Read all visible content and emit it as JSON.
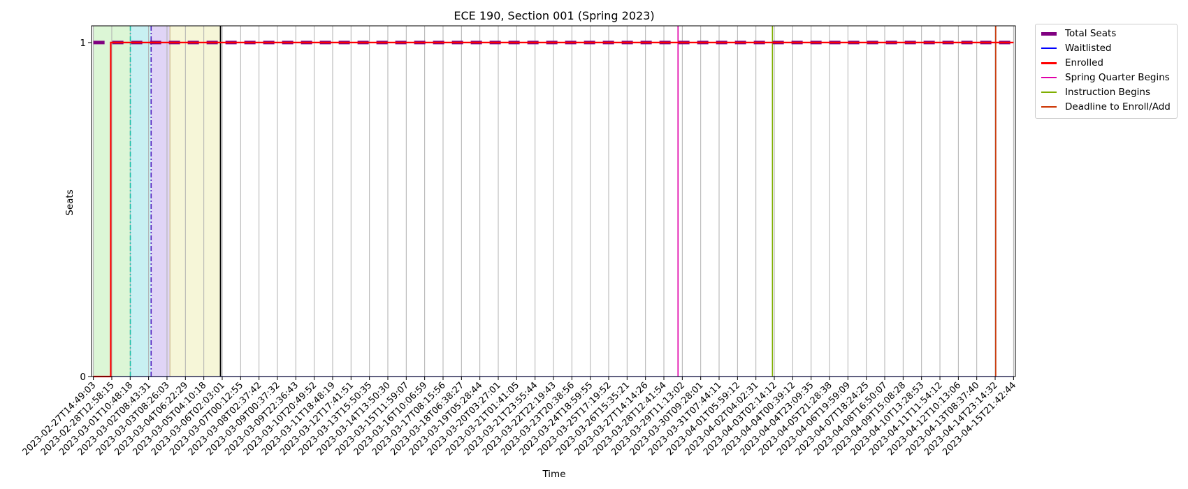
{
  "chart_data": {
    "type": "line",
    "title": "ECE 190, Section 001 (Spring 2023)",
    "xlabel": "Time",
    "ylabel": "Seats",
    "ylim": [
      0,
      1.05
    ],
    "y_ticks": [
      "0",
      "1"
    ],
    "x": [
      "2023-02-27T14:49:03",
      "2023-02-28T12:58:15",
      "2023-03-01T10:48:18",
      "2023-03-02T08:43:31",
      "2023-03-03T08:26:03",
      "2023-03-04T06:22:29",
      "2023-03-05T04:10:18",
      "2023-03-06T02:03:01",
      "2023-03-07T00:12:55",
      "2023-03-08T02:37:42",
      "2023-03-09T00:37:32",
      "2023-03-09T22:36:43",
      "2023-03-10T20:49:52",
      "2023-03-11T18:48:19",
      "2023-03-12T17:41:51",
      "2023-03-13T15:50:35",
      "2023-03-14T13:50:30",
      "2023-03-15T11:59:07",
      "2023-03-16T10:06:59",
      "2023-03-17T08:15:56",
      "2023-03-18T06:38:27",
      "2023-03-19T05:28:44",
      "2023-03-20T03:27:01",
      "2023-03-21T01:41:05",
      "2023-03-21T23:55:44",
      "2023-03-22T22:19:43",
      "2023-03-23T20:38:56",
      "2023-03-24T18:59:55",
      "2023-03-25T17:19:52",
      "2023-03-26T15:35:21",
      "2023-03-27T14:14:26",
      "2023-03-28T12:41:54",
      "2023-03-29T11:13:02",
      "2023-03-30T09:28:01",
      "2023-03-31T07:44:11",
      "2023-04-01T05:59:12",
      "2023-04-02T04:02:31",
      "2023-04-03T02:14:12",
      "2023-04-04T00:39:12",
      "2023-04-04T23:09:35",
      "2023-04-05T21:28:38",
      "2023-04-06T19:59:09",
      "2023-04-07T18:24:25",
      "2023-04-08T16:50:07",
      "2023-04-09T15:08:28",
      "2023-04-10T13:28:53",
      "2023-04-11T11:54:12",
      "2023-04-12T10:13:06",
      "2023-04-13T08:37:40",
      "2023-04-14T23:14:32",
      "2023-04-15T21:42:44"
    ],
    "series": [
      {
        "name": "Total Seats",
        "color": "#800080",
        "style": "thick-dashed",
        "values": [
          1,
          1,
          1,
          1,
          1,
          1,
          1,
          1,
          1,
          1,
          1,
          1,
          1,
          1,
          1,
          1,
          1,
          1,
          1,
          1,
          1,
          1,
          1,
          1,
          1,
          1,
          1,
          1,
          1,
          1,
          1,
          1,
          1,
          1,
          1,
          1,
          1,
          1,
          1,
          1,
          1,
          1,
          1,
          1,
          1,
          1,
          1,
          1,
          1,
          1,
          1
        ]
      },
      {
        "name": "Waitlisted",
        "color": "#0000ff",
        "style": "solid",
        "values": [
          0,
          0,
          0,
          0,
          0,
          0,
          0,
          0,
          0,
          0,
          0,
          0,
          0,
          0,
          0,
          0,
          0,
          0,
          0,
          0,
          0,
          0,
          0,
          0,
          0,
          0,
          0,
          0,
          0,
          0,
          0,
          0,
          0,
          0,
          0,
          0,
          0,
          0,
          0,
          0,
          0,
          0,
          0,
          0,
          0,
          0,
          0,
          0,
          0,
          0,
          0
        ]
      },
      {
        "name": "Enrolled",
        "color": "#ff0000",
        "style": "thick",
        "values": [
          0,
          1,
          1,
          1,
          1,
          1,
          1,
          1,
          1,
          1,
          1,
          1,
          1,
          1,
          1,
          1,
          1,
          1,
          1,
          1,
          1,
          1,
          1,
          1,
          1,
          1,
          1,
          1,
          1,
          1,
          1,
          1,
          1,
          1,
          1,
          1,
          1,
          1,
          1,
          1,
          1,
          1,
          1,
          1,
          1,
          1,
          1,
          1,
          1,
          1,
          1
        ]
      }
    ],
    "enrollment_change_at": "2023-02-28T11:40:00",
    "events": [
      {
        "name": "Spring Quarter Begins",
        "x": "2023-03-29T06:00:00",
        "color": "#e000a8"
      },
      {
        "name": "Instruction Begins",
        "x": "2023-04-03T00:00:00",
        "color": "#7fae00"
      },
      {
        "name": "Deadline to Enroll/Add",
        "x": "2023-04-14T23:59:00",
        "color": "#cc3300"
      }
    ],
    "shaded_periods": [
      {
        "start": "2023-02-27T14:49:03",
        "end": "2023-03-01T11:00:00",
        "color": "#dcf6d6"
      },
      {
        "start": "2023-03-01T11:00:00",
        "end": "2023-03-02T12:00:00",
        "color": "#c8f0f2"
      },
      {
        "start": "2023-03-02T12:00:00",
        "end": "2023-03-03T12:00:00",
        "color": "#e0d4f6"
      },
      {
        "start": "2023-03-03T12:00:00",
        "end": "2023-03-06T00:00:00",
        "color": "#f6f6d8"
      }
    ],
    "period_markers": [
      {
        "x": "2023-03-01T11:00:00",
        "color": "#20c0a8",
        "style": "dashdot"
      },
      {
        "x": "2023-03-02T12:00:00",
        "color": "#5020c0",
        "style": "dashdot"
      },
      {
        "x": "2023-03-03T12:00:00",
        "color": "#d8c8a0",
        "style": "solid"
      },
      {
        "x": "2023-03-06T00:00:00",
        "color": "#000000",
        "style": "solid"
      }
    ],
    "grid": true,
    "legend_position": "outside-top-right"
  }
}
